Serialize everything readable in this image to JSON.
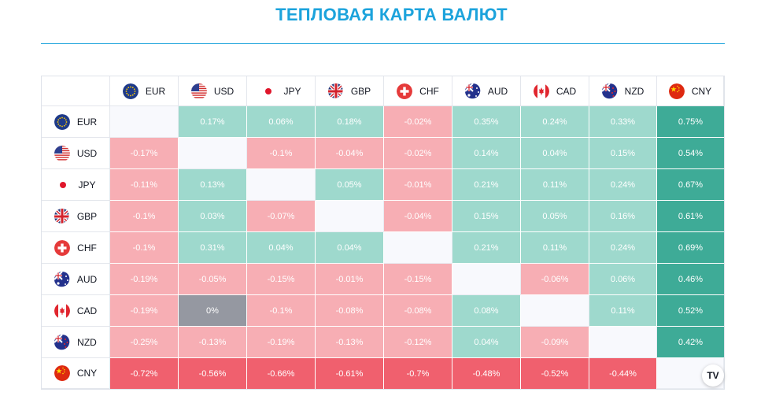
{
  "title": "ТЕПЛОВАЯ КАРТА ВАЛЮТ",
  "badge": "TV",
  "currencies": [
    {
      "code": "EUR",
      "flag": "eu-flag-icon"
    },
    {
      "code": "USD",
      "flag": "us-flag-icon"
    },
    {
      "code": "JPY",
      "flag": "jp-flag-icon"
    },
    {
      "code": "GBP",
      "flag": "gb-flag-icon"
    },
    {
      "code": "CHF",
      "flag": "ch-flag-icon"
    },
    {
      "code": "AUD",
      "flag": "au-flag-icon"
    },
    {
      "code": "CAD",
      "flag": "ca-flag-icon"
    },
    {
      "code": "NZD",
      "flag": "nz-flag-icon"
    },
    {
      "code": "CNY",
      "flag": "cn-flag-icon"
    }
  ],
  "rows": [
    {
      "base": "EUR",
      "values": [
        "",
        "0.17%",
        "0.06%",
        "0.18%",
        "-0.02%",
        "0.35%",
        "0.24%",
        "0.33%",
        "0.75%"
      ]
    },
    {
      "base": "USD",
      "values": [
        "-0.17%",
        "",
        "-0.1%",
        "-0.04%",
        "-0.02%",
        "0.14%",
        "0.04%",
        "0.15%",
        "0.54%"
      ]
    },
    {
      "base": "JPY",
      "values": [
        "-0.11%",
        "0.13%",
        "",
        "0.05%",
        "-0.01%",
        "0.21%",
        "0.11%",
        "0.24%",
        "0.67%"
      ]
    },
    {
      "base": "GBP",
      "values": [
        "-0.1%",
        "0.03%",
        "-0.07%",
        "",
        "-0.04%",
        "0.15%",
        "0.05%",
        "0.16%",
        "0.61%"
      ]
    },
    {
      "base": "CHF",
      "values": [
        "-0.1%",
        "0.31%",
        "0.04%",
        "0.04%",
        "",
        "0.21%",
        "0.11%",
        "0.24%",
        "0.69%"
      ]
    },
    {
      "base": "AUD",
      "values": [
        "-0.19%",
        "-0.05%",
        "-0.15%",
        "-0.01%",
        "-0.15%",
        "",
        "-0.06%",
        "0.06%",
        "0.46%"
      ]
    },
    {
      "base": "CAD",
      "values": [
        "-0.19%",
        "0%",
        "-0.1%",
        "-0.08%",
        "-0.08%",
        "0.08%",
        "",
        "0.11%",
        "0.52%"
      ]
    },
    {
      "base": "NZD",
      "values": [
        "-0.25%",
        "-0.13%",
        "-0.19%",
        "-0.13%",
        "-0.12%",
        "0.04%",
        "-0.09%",
        "",
        "0.42%"
      ]
    },
    {
      "base": "CNY",
      "values": [
        "-0.72%",
        "-0.56%",
        "-0.66%",
        "-0.61%",
        "-0.7%",
        "-0.48%",
        "-0.52%",
        "-0.44%",
        ""
      ]
    }
  ],
  "colors": {
    "title": "#1ca3dc",
    "positive_light": "#9ed9cd",
    "positive_strong": "#3eab97",
    "negative_light": "#f7aeb4",
    "negative_strong": "#f0606e",
    "neutral": "#9598a1",
    "empty": "#f8f9fd"
  }
}
